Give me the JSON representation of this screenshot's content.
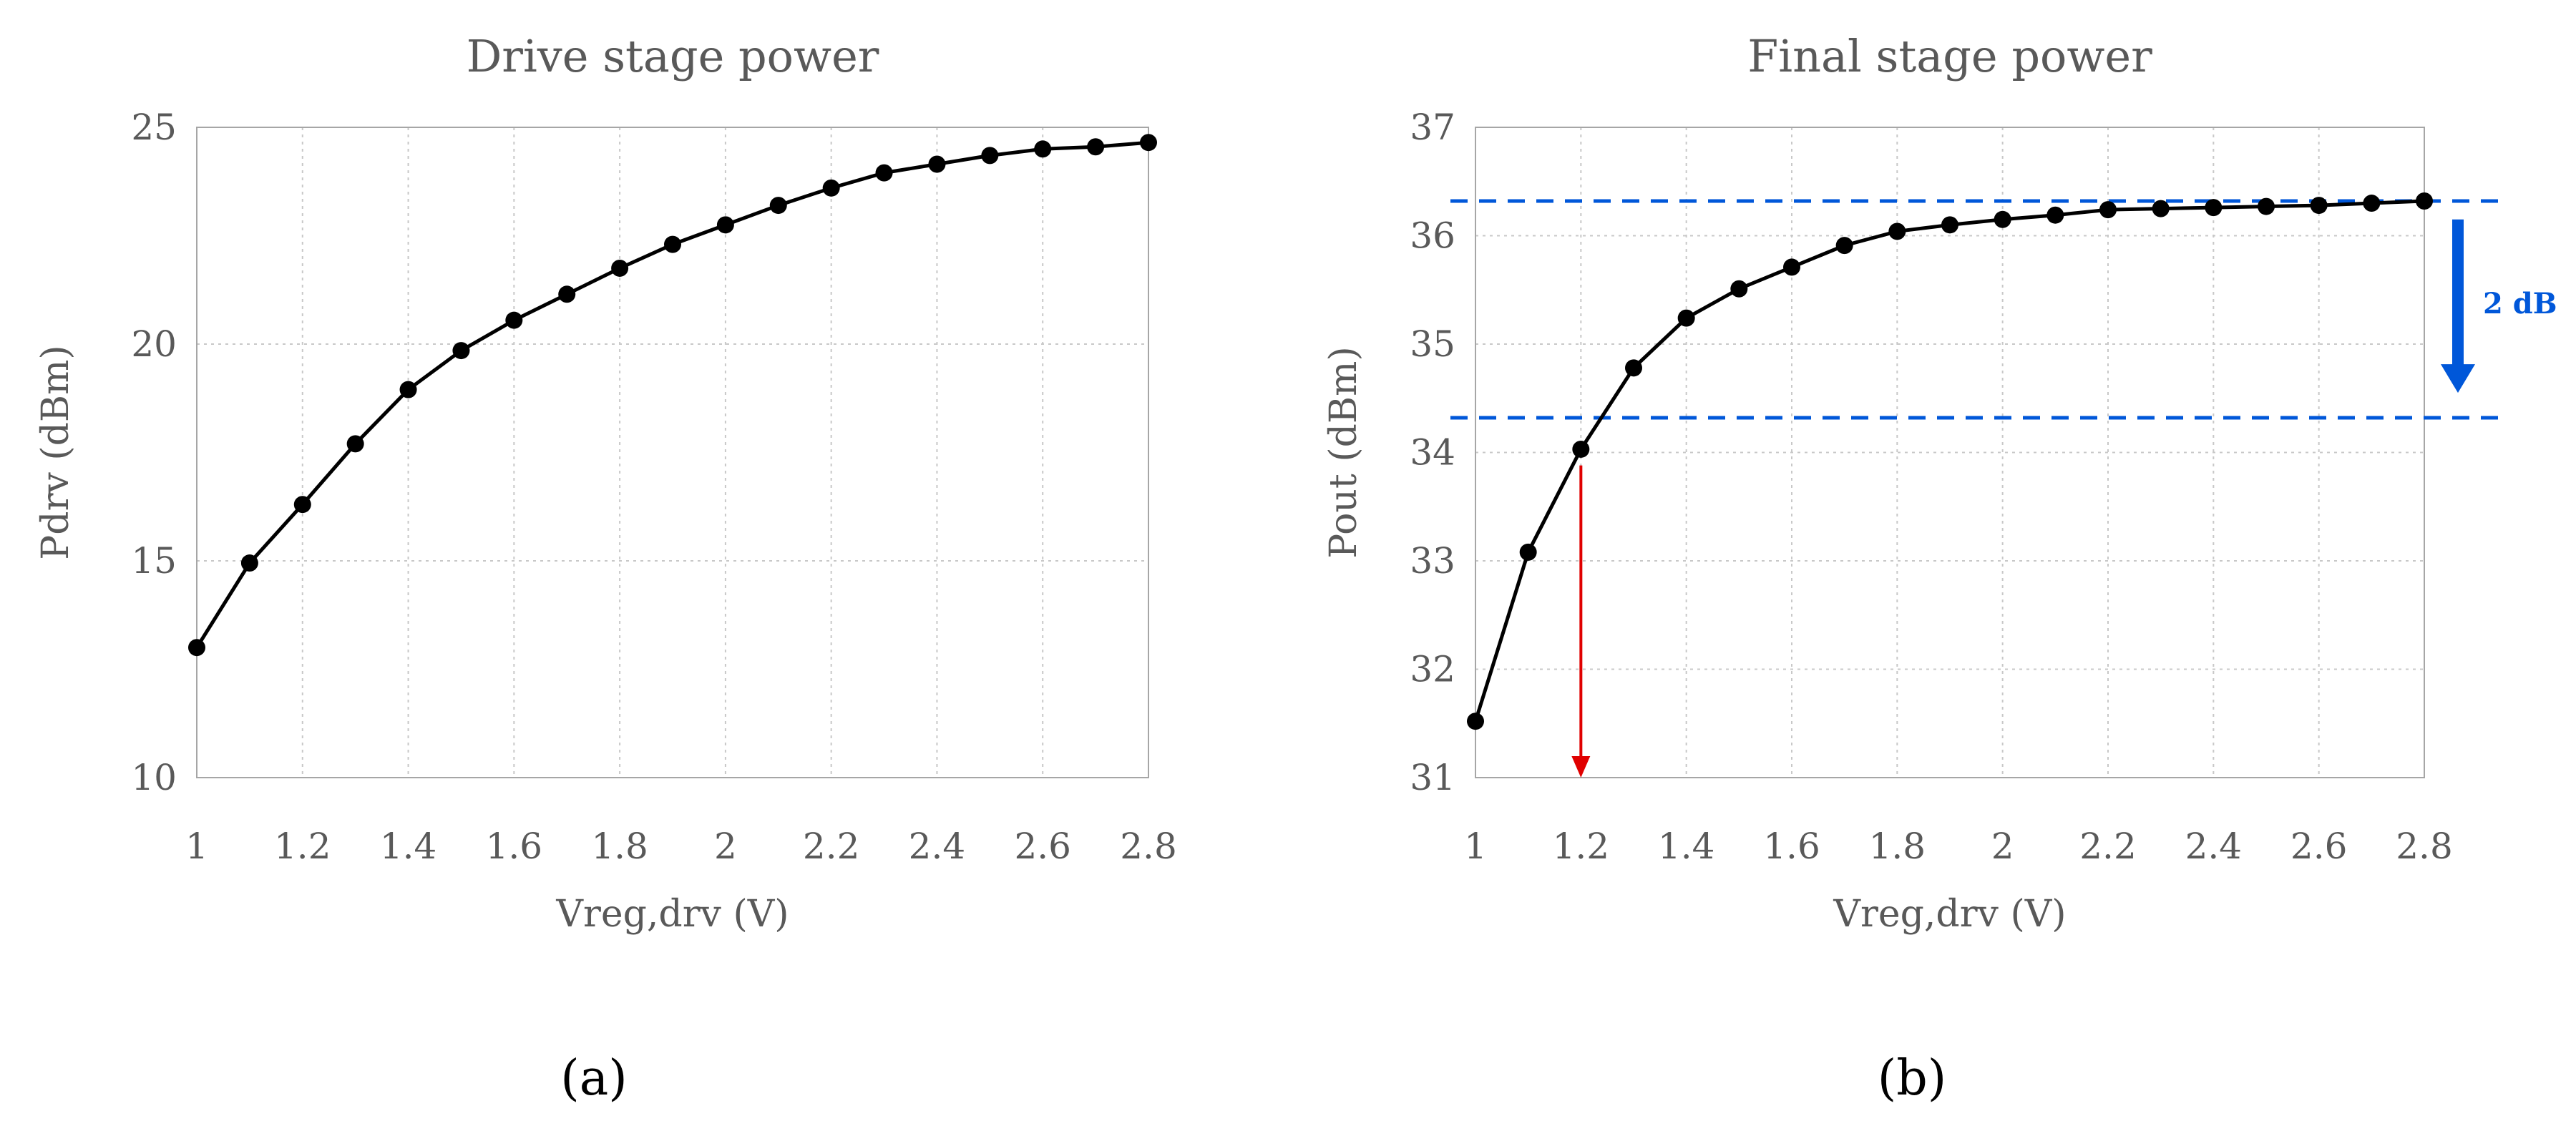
{
  "colors": {
    "series": "#000000",
    "reference": "#0057d9",
    "marker_arrow": "#e00000",
    "text": "#595959"
  },
  "chart_data": [
    {
      "type": "line",
      "title": "Drive stage power",
      "xlabel": "Vreg,drv  (V)",
      "ylabel": "Pdrv (dBm)",
      "panel_label": "(a)",
      "xlim": [
        1,
        2.8
      ],
      "ylim": [
        10,
        25
      ],
      "xticks": [
        1,
        1.2,
        1.4,
        1.6,
        1.8,
        2,
        2.2,
        2.4,
        2.6,
        2.8
      ],
      "yticks": [
        10,
        15,
        20,
        25
      ],
      "xtick_labels": [
        "1",
        "1.2",
        "1.4",
        "1.6",
        "1.8",
        "2",
        "2.2",
        "2.4",
        "2.6",
        "2.8"
      ],
      "ytick_labels": [
        "10",
        "15",
        "20",
        "25"
      ],
      "grid": true,
      "series": [
        {
          "x": [
            1,
            1.1,
            1.2,
            1.3,
            1.4,
            1.5,
            1.6,
            1.7,
            1.8,
            1.9,
            2,
            2.1,
            2.2,
            2.3,
            2.4,
            2.5,
            2.6,
            2.7,
            2.8
          ],
          "y": [
            13.0,
            14.95,
            16.3,
            17.7,
            18.95,
            19.85,
            20.55,
            21.15,
            21.75,
            22.3,
            22.75,
            23.2,
            23.6,
            23.95,
            24.15,
            24.35,
            24.5,
            24.55,
            24.65
          ]
        }
      ]
    },
    {
      "type": "line",
      "title": "Final stage power",
      "xlabel": "Vreg,drv  (V)",
      "ylabel": "Pout (dBm)",
      "panel_label": "(b)",
      "xlim": [
        1,
        2.8
      ],
      "ylim": [
        31,
        37
      ],
      "xticks": [
        1,
        1.2,
        1.4,
        1.6,
        1.8,
        2,
        2.2,
        2.4,
        2.6,
        2.8
      ],
      "yticks": [
        31,
        32,
        33,
        34,
        35,
        36,
        37
      ],
      "xtick_labels": [
        "1",
        "1.2",
        "1.4",
        "1.6",
        "1.8",
        "2",
        "2.2",
        "2.4",
        "2.6",
        "2.8"
      ],
      "ytick_labels": [
        "31",
        "32",
        "33",
        "34",
        "35",
        "36",
        "37"
      ],
      "grid": true,
      "series": [
        {
          "x": [
            1,
            1.1,
            1.2,
            1.3,
            1.4,
            1.5,
            1.6,
            1.7,
            1.8,
            1.9,
            2,
            2.1,
            2.2,
            2.3,
            2.4,
            2.5,
            2.6,
            2.7,
            2.8
          ],
          "y": [
            31.52,
            33.08,
            34.03,
            34.78,
            35.24,
            35.51,
            35.71,
            35.91,
            36.04,
            36.1,
            36.15,
            36.19,
            36.24,
            36.25,
            36.26,
            36.27,
            36.28,
            36.3,
            36.32
          ]
        }
      ],
      "reference_lines": [
        36.32,
        34.32
      ],
      "annotation": {
        "text": "2 dB",
        "from_y": 36.15,
        "to_y": 34.55
      },
      "marker_arrow": {
        "x": 1.2,
        "from_y": 33.88,
        "to_y": 31.0
      }
    }
  ]
}
